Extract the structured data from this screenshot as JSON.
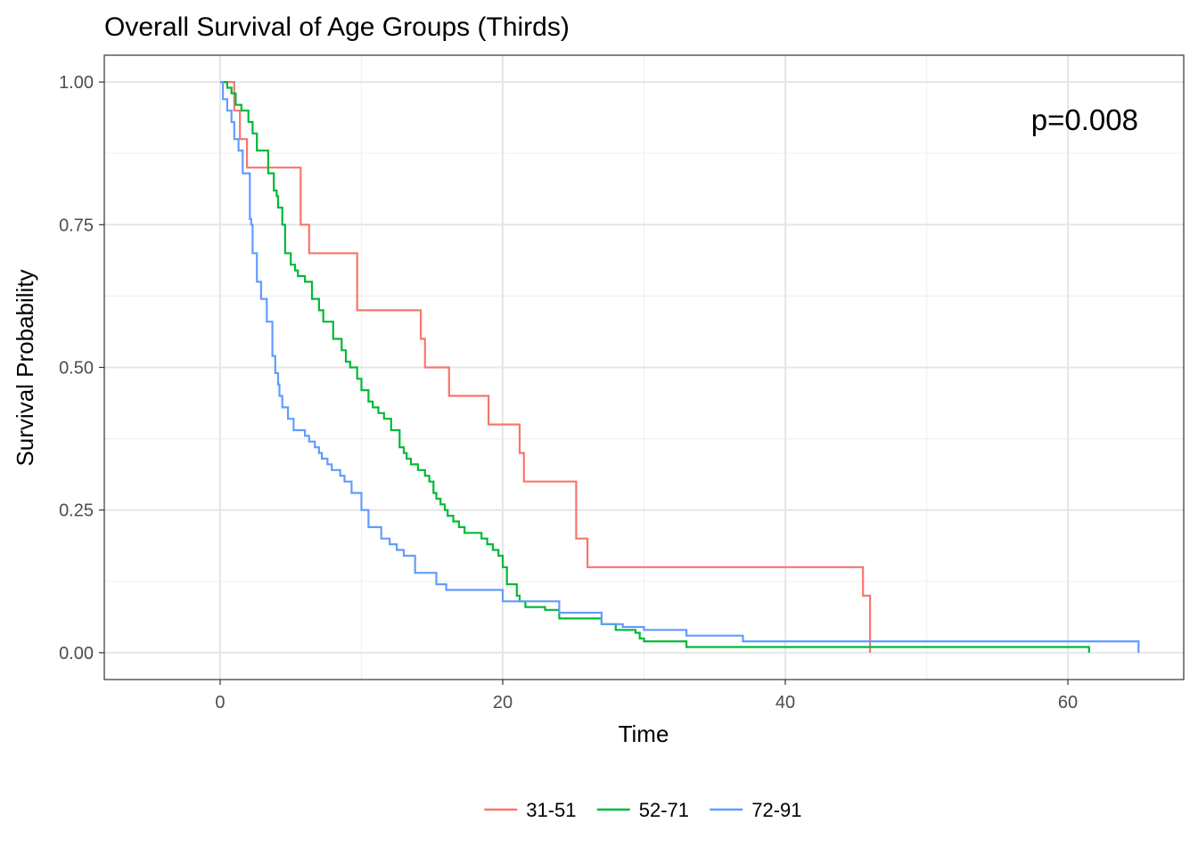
{
  "chart_data": {
    "type": "line",
    "title": "Overall Survival of Age Groups (Thirds)",
    "xlabel": "Time",
    "ylabel": "Survival Probability",
    "xlim": [
      -8.2,
      68.2
    ],
    "ylim": [
      -0.047,
      1.047
    ],
    "x_ticks": [
      0,
      20,
      40,
      60
    ],
    "x_tick_labels": [
      "0",
      "20",
      "40",
      "60"
    ],
    "y_ticks": [
      0,
      0.25,
      0.5,
      0.75,
      1
    ],
    "y_tick_labels": [
      "0.00",
      "0.25",
      "0.50",
      "0.75",
      "1.00"
    ],
    "grid": true,
    "legend_position": "bottom",
    "annotation": "p=0.008",
    "series": [
      {
        "name": "31-51",
        "color": "#F8766D",
        "x": [
          0,
          1.0,
          1.4,
          1.9,
          5.7,
          6.3,
          9.7,
          14.2,
          14.5,
          16.2,
          19.0,
          21.2,
          21.5,
          25.2,
          26.0,
          45.5,
          46.0,
          46.0
        ],
        "y": [
          1.0,
          0.95,
          0.9,
          0.85,
          0.75,
          0.7,
          0.6,
          0.55,
          0.5,
          0.45,
          0.4,
          0.35,
          0.3,
          0.2,
          0.15,
          0.1,
          0.05,
          0.0
        ]
      },
      {
        "name": "52-71",
        "color": "#00BA38",
        "x": [
          0,
          0.5,
          0.8,
          1.1,
          1.5,
          2.0,
          2.3,
          2.6,
          3.4,
          3.8,
          4.0,
          4.1,
          4.4,
          4.6,
          5.0,
          5.3,
          5.5,
          6.0,
          6.5,
          7.0,
          7.3,
          8.0,
          8.6,
          8.9,
          9.2,
          9.7,
          10.0,
          10.5,
          10.8,
          11.2,
          11.6,
          12.1,
          12.7,
          13.0,
          13.2,
          13.5,
          14.0,
          14.5,
          14.8,
          15.1,
          15.3,
          15.6,
          15.9,
          16.1,
          16.5,
          16.9,
          17.3,
          18.5,
          18.9,
          19.3,
          19.7,
          20.0,
          20.3,
          21.0,
          21.2,
          21.6,
          23.0,
          24.0,
          27.0,
          28.0,
          29.4,
          29.7,
          30.0,
          33.0,
          61.5,
          61.5
        ],
        "y": [
          1.0,
          0.99,
          0.98,
          0.96,
          0.95,
          0.93,
          0.91,
          0.88,
          0.84,
          0.81,
          0.8,
          0.78,
          0.75,
          0.7,
          0.68,
          0.67,
          0.66,
          0.65,
          0.62,
          0.6,
          0.58,
          0.55,
          0.53,
          0.51,
          0.5,
          0.48,
          0.46,
          0.44,
          0.43,
          0.42,
          0.41,
          0.39,
          0.36,
          0.35,
          0.34,
          0.33,
          0.32,
          0.31,
          0.3,
          0.28,
          0.27,
          0.26,
          0.25,
          0.24,
          0.23,
          0.22,
          0.21,
          0.2,
          0.19,
          0.18,
          0.17,
          0.15,
          0.12,
          0.1,
          0.09,
          0.08,
          0.075,
          0.06,
          0.05,
          0.04,
          0.035,
          0.025,
          0.02,
          0.01,
          0.0,
          0.0
        ]
      },
      {
        "name": "72-91",
        "color": "#619CFF",
        "x": [
          0,
          0.2,
          0.5,
          0.8,
          1.0,
          1.3,
          1.6,
          2.1,
          2.2,
          2.3,
          2.6,
          2.9,
          3.3,
          3.7,
          3.9,
          4.1,
          4.2,
          4.4,
          4.8,
          5.2,
          6.0,
          6.3,
          6.7,
          7.0,
          7.2,
          7.6,
          7.9,
          8.5,
          8.8,
          9.3,
          10.0,
          10.5,
          11.4,
          12.0,
          12.5,
          13.0,
          13.8,
          15.3,
          16.0,
          20.0,
          24.0,
          27.0,
          28.5,
          30.0,
          33.0,
          37.0,
          65.0,
          65.0
        ],
        "y": [
          1.0,
          0.97,
          0.95,
          0.93,
          0.9,
          0.88,
          0.84,
          0.76,
          0.75,
          0.7,
          0.65,
          0.62,
          0.58,
          0.52,
          0.49,
          0.47,
          0.45,
          0.43,
          0.41,
          0.39,
          0.38,
          0.37,
          0.36,
          0.35,
          0.34,
          0.33,
          0.32,
          0.31,
          0.3,
          0.28,
          0.25,
          0.22,
          0.2,
          0.19,
          0.18,
          0.17,
          0.14,
          0.12,
          0.11,
          0.09,
          0.07,
          0.05,
          0.045,
          0.04,
          0.03,
          0.02,
          0.01,
          0.0
        ]
      }
    ]
  }
}
